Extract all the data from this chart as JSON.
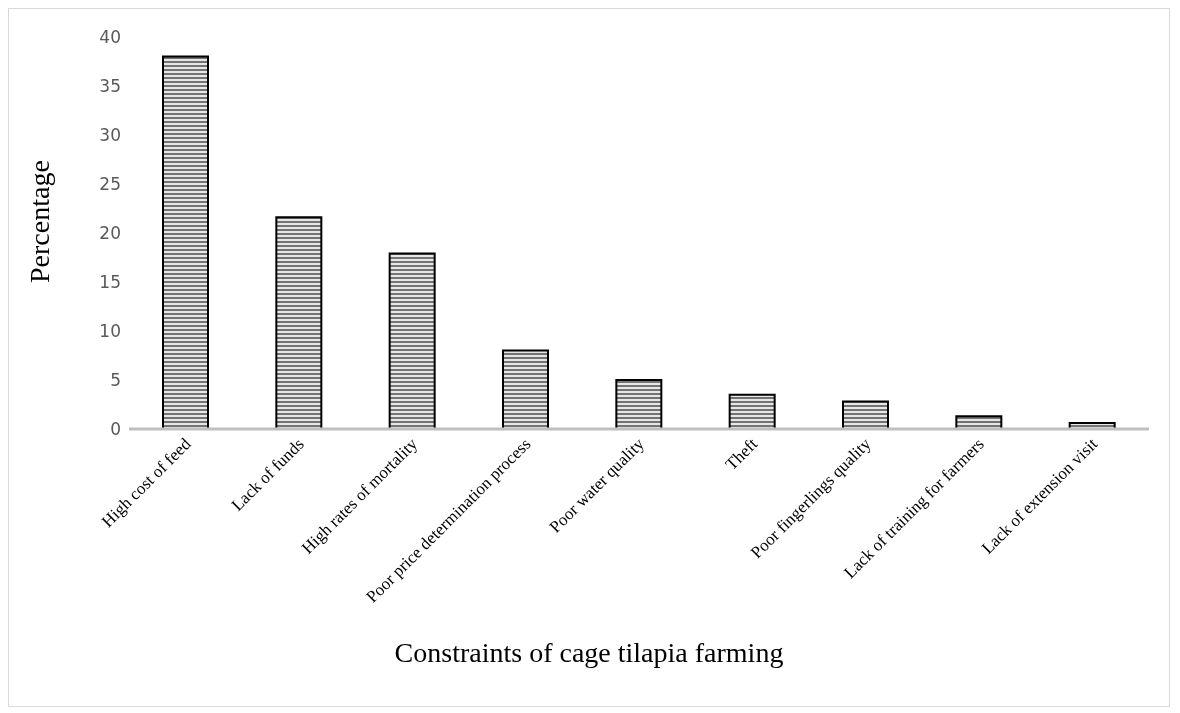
{
  "chart_data": {
    "type": "bar",
    "xlabel": "Constraints of  cage tilapia farming",
    "ylabel": "Percentage",
    "categories": [
      "High cost of feed",
      "Lack of funds",
      "High rates of mortality",
      "Poor price determination process",
      "Poor water quality",
      "Theft",
      "Poor fingerlings quality",
      "Lack of training for farmers",
      "Lack of extension visit"
    ],
    "values": [
      38,
      21.6,
      17.9,
      8,
      5,
      3.5,
      2.8,
      1.3,
      0.6
    ],
    "color": "#000000",
    "ylim": [
      0,
      40
    ],
    "yticks": [
      0,
      5,
      10,
      15,
      20,
      25,
      30,
      35,
      40
    ]
  }
}
